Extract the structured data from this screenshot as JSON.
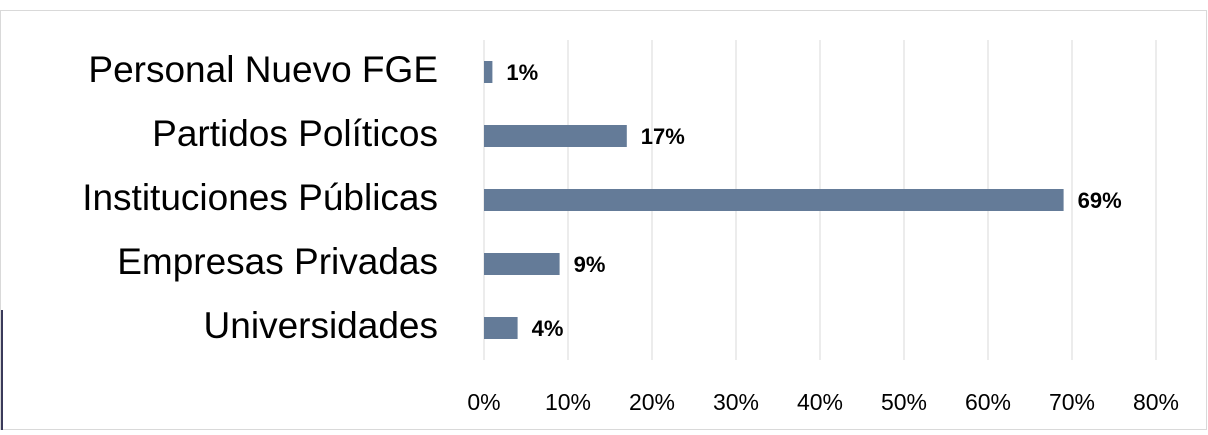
{
  "chart_data": {
    "type": "bar",
    "orientation": "horizontal",
    "categories": [
      "Personal Nuevo FGE",
      "Partidos Políticos",
      "Instituciones Públicas",
      "Empresas Privadas",
      "Universidades"
    ],
    "values": [
      1,
      17,
      69,
      9,
      4
    ],
    "value_labels": [
      "1%",
      "17%",
      "69%",
      "9%",
      "4%"
    ],
    "color": "#647b98",
    "xlim": [
      0,
      80
    ],
    "xticks": [
      {
        "value": 0,
        "label": "0%"
      },
      {
        "value": 10,
        "label": "10%"
      },
      {
        "value": 20,
        "label": "20%"
      },
      {
        "value": 30,
        "label": "30%"
      },
      {
        "value": 40,
        "label": "40%"
      },
      {
        "value": 50,
        "label": "50%"
      },
      {
        "value": 60,
        "label": "60%"
      },
      {
        "value": 70,
        "label": "70%"
      },
      {
        "value": 80,
        "label": "80%"
      }
    ],
    "grid": true
  }
}
